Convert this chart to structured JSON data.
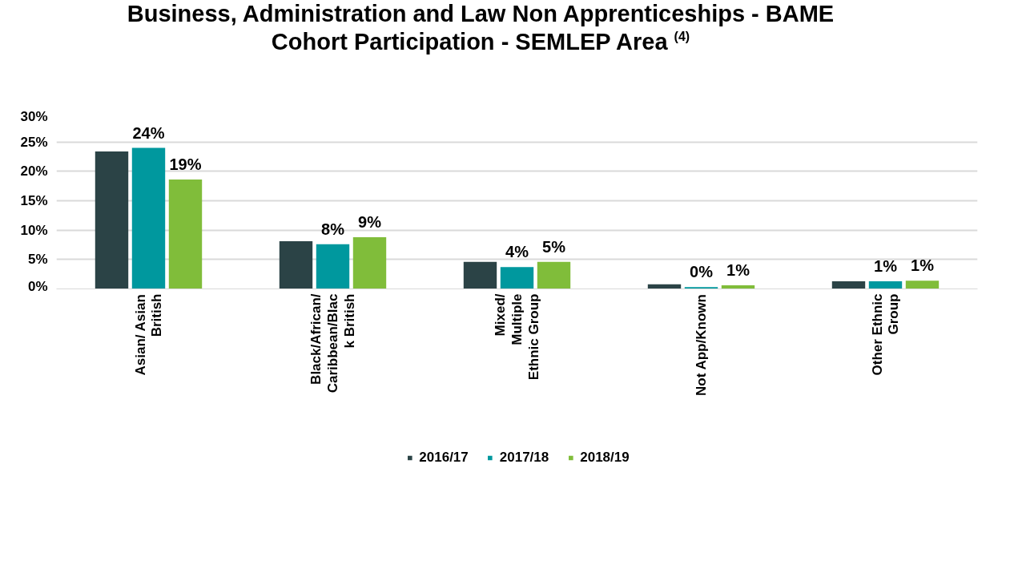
{
  "chart_data": {
    "type": "bar",
    "title": "Business, Administration and Law Non Apprenticeships - BAME Cohort Participation - SEMLEP Area $^{(4)}$",
    "categories": [
      "Asian/ Asian British",
      "Black/African/Caribbean/Black British",
      "Mixed/ Multiple Ethnic Group",
      "Not App/Known",
      "Other Ethnic Group"
    ],
    "series": [
      {
        "name": "2016/17",
        "color": "#2b4346",
        "values": [
          23.4,
          8.1,
          4.6,
          0.8,
          1.3
        ]
      },
      {
        "name": "2017/18",
        "color": "#00989e",
        "values": [
          24.0,
          7.6,
          3.7,
          0.3,
          1.3
        ],
        "value_labels": [
          "24%",
          "8%",
          "4%",
          "0%",
          "1%"
        ]
      },
      {
        "name": "2018/19",
        "color": "#80bd3a",
        "values": [
          18.6,
          8.8,
          4.6,
          0.6,
          1.4
        ],
        "value_labels": [
          "19%",
          "9%",
          "5%",
          "1%",
          "1%"
        ]
      }
    ],
    "ylim": [
      0,
      30
    ],
    "yticks": [
      {
        "value": 0,
        "label": "0%"
      },
      {
        "value": 5,
        "label": "5%"
      },
      {
        "value": 10,
        "label": "10%"
      },
      {
        "value": 15,
        "label": "15%"
      },
      {
        "value": 20,
        "label": "20%"
      },
      {
        "value": 25,
        "label": "25%"
      },
      {
        "value": 30,
        "label": "30%"
      }
    ],
    "grid": "y",
    "legend": "bottom"
  }
}
